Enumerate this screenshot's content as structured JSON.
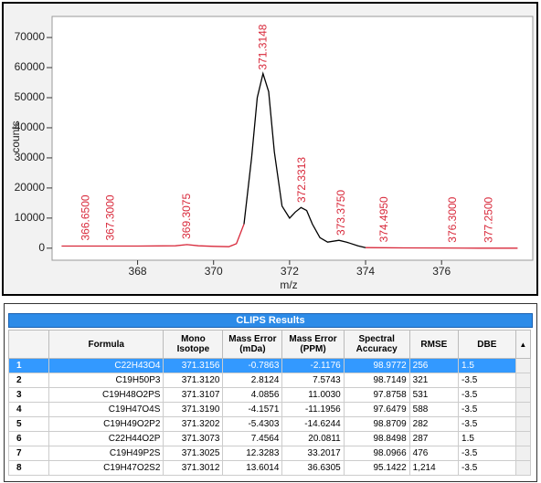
{
  "chart_data": {
    "type": "line",
    "x_label": "m/z",
    "y_label": "counts",
    "x": [
      366.0,
      367.0,
      368.0,
      369.0,
      369.3,
      369.6,
      370.0,
      370.4,
      370.6,
      370.8,
      371.0,
      371.15,
      371.3,
      371.45,
      371.6,
      371.8,
      372.0,
      372.15,
      372.3,
      372.45,
      372.6,
      372.8,
      373.0,
      373.3,
      373.5,
      373.8,
      374.0,
      375.0,
      376.0,
      377.0,
      378.0
    ],
    "series": [
      {
        "color": "#d8283a",
        "values": [
          700,
          700,
          700,
          800,
          1200,
          800,
          600,
          500,
          1500,
          8000,
          null,
          null,
          null,
          null,
          null,
          null,
          null,
          null,
          null,
          null,
          null,
          null,
          null,
          null,
          null,
          null,
          200,
          100,
          50,
          0,
          0
        ]
      },
      {
        "color": "#000000",
        "values": [
          null,
          null,
          null,
          null,
          null,
          null,
          null,
          null,
          null,
          8000,
          30000,
          50000,
          58000,
          52000,
          32000,
          14000,
          10000,
          12000,
          13500,
          12500,
          8000,
          3500,
          2000,
          2600,
          2000,
          800,
          200,
          null,
          null,
          null,
          null
        ]
      }
    ],
    "annotations": [
      {
        "value": 366.65,
        "label": "366.6500"
      },
      {
        "value": 367.3,
        "label": "367.3000"
      },
      {
        "value": 369.3075,
        "label": "369.3075"
      },
      {
        "value": 371.3148,
        "label": "371.3148"
      },
      {
        "value": 372.3313,
        "label": "372.3313"
      },
      {
        "value": 373.375,
        "label": "373.3750"
      },
      {
        "value": 374.495,
        "label": "374.4950"
      },
      {
        "value": 376.3,
        "label": "376.3000"
      },
      {
        "value": 377.25,
        "label": "377.2500"
      }
    ],
    "annotation_color": "#d8283a",
    "xlim": [
      365.75,
      378.4
    ],
    "xticks": [
      368,
      370,
      372,
      374,
      376
    ],
    "ylim": [
      -4000,
      77000
    ],
    "yticks": [
      0,
      10000,
      20000,
      30000,
      40000,
      50000,
      60000,
      70000
    ]
  },
  "table": {
    "title": "CLIPS Results",
    "headers": [
      "Formula",
      "Mono Isotope",
      "Mass Error (mDa)",
      "Mass Error (PPM)",
      "Spectral Accuracy",
      "RMSE",
      "DBE"
    ],
    "rows": [
      [
        "1",
        "C22H43O4",
        "371.3156",
        "-0.7863",
        "-2.1176",
        "98.9772",
        "256",
        "1.5"
      ],
      [
        "2",
        "C19H50P3",
        "371.3120",
        "2.8124",
        "7.5743",
        "98.7149",
        "321",
        "-3.5"
      ],
      [
        "3",
        "C19H48O2PS",
        "371.3107",
        "4.0856",
        "11.0030",
        "97.8758",
        "531",
        "-3.5"
      ],
      [
        "4",
        "C19H47O4S",
        "371.3190",
        "-4.1571",
        "-11.1956",
        "97.6479",
        "588",
        "-3.5"
      ],
      [
        "5",
        "C19H49O2P2",
        "371.3202",
        "-5.4303",
        "-14.6244",
        "98.8709",
        "282",
        "-3.5"
      ],
      [
        "6",
        "C22H44O2P",
        "371.3073",
        "7.4564",
        "20.0811",
        "98.8498",
        "287",
        "1.5"
      ],
      [
        "7",
        "C19H49P2S",
        "371.3025",
        "12.3283",
        "33.2017",
        "98.0966",
        "476",
        "-3.5"
      ],
      [
        "8",
        "C19H47O2S2",
        "371.3012",
        "13.6014",
        "36.6305",
        "95.1422",
        "1,214",
        "-3.5"
      ]
    ]
  }
}
